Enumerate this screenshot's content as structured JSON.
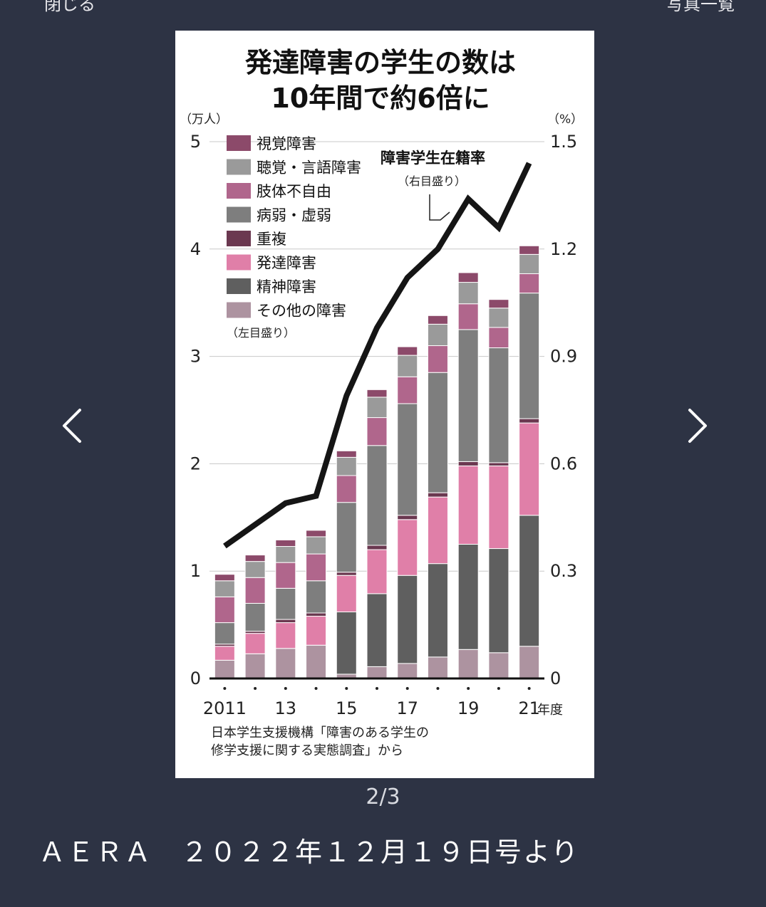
{
  "nav": {
    "close_label": "閉じる",
    "photo_list_label": "写真一覧",
    "prev_icon": "chevron-left-icon",
    "next_icon": "chevron-right-icon"
  },
  "viewer": {
    "counter": "2/3",
    "caption": "ＡＥＲＡ　２０２２年１２月１９日号より"
  },
  "chart_data": {
    "type": "bar",
    "stacked": true,
    "title_line1": "発達障害の学生の数は",
    "title_line2": "10年間で約6倍に",
    "y_unit_left": "（万人）",
    "y_unit_right": "（%）",
    "ylim": [
      0,
      5
    ],
    "y2lim": [
      0,
      1.5
    ],
    "yticks": [
      "0",
      "1",
      "2",
      "3",
      "4",
      "5"
    ],
    "y2ticks": [
      "0",
      "0.3",
      "0.6",
      "0.9",
      "1.2",
      "1.5"
    ],
    "x": [
      "2011",
      "12",
      "13",
      "14",
      "15",
      "16",
      "17",
      "18",
      "19",
      "20",
      "21"
    ],
    "x_tick_labels": [
      "2011",
      "",
      "13",
      "",
      "15",
      "",
      "17",
      "",
      "19",
      "",
      "21"
    ],
    "x_unit": "年度",
    "grid": true,
    "legend_note": "（左目盛り）",
    "colors": {
      "visual": "#8c4a6a",
      "hearing": "#9a9a9a",
      "limb": "#b0668c",
      "illness": "#7e7e7e",
      "multiple": "#6b3850",
      "developmental": "#e07fa8",
      "mental": "#5f5f5f",
      "other": "#ad93a0"
    },
    "series": [
      {
        "name": "視覚障害",
        "key": "visual",
        "values": [
          0.06,
          0.06,
          0.06,
          0.06,
          0.06,
          0.07,
          0.08,
          0.08,
          0.09,
          0.08,
          0.08
        ]
      },
      {
        "name": "聴覚・言語障害",
        "key": "hearing",
        "values": [
          0.15,
          0.15,
          0.15,
          0.16,
          0.17,
          0.19,
          0.2,
          0.2,
          0.2,
          0.18,
          0.18
        ]
      },
      {
        "name": "肢体不自由",
        "key": "limb",
        "values": [
          0.24,
          0.24,
          0.24,
          0.25,
          0.25,
          0.26,
          0.25,
          0.25,
          0.24,
          0.19,
          0.18
        ]
      },
      {
        "name": "病弱・虚弱",
        "key": "illness",
        "values": [
          0.2,
          0.26,
          0.29,
          0.3,
          0.65,
          0.93,
          1.04,
          1.12,
          1.23,
          1.07,
          1.17
        ]
      },
      {
        "name": "重複",
        "key": "multiple",
        "values": [
          0.02,
          0.02,
          0.03,
          0.03,
          0.03,
          0.04,
          0.04,
          0.04,
          0.04,
          0.03,
          0.04
        ]
      },
      {
        "name": "発達障害",
        "key": "developmental",
        "values": [
          0.13,
          0.19,
          0.24,
          0.27,
          0.34,
          0.41,
          0.52,
          0.62,
          0.73,
          0.77,
          0.86
        ]
      },
      {
        "name": "精神障害",
        "key": "mental",
        "values": [
          0.0,
          0.0,
          0.0,
          0.0,
          0.58,
          0.68,
          0.82,
          0.87,
          0.98,
          0.97,
          1.22
        ]
      },
      {
        "name": "その他の障害",
        "key": "other",
        "values": [
          0.17,
          0.23,
          0.28,
          0.31,
          0.04,
          0.11,
          0.14,
          0.2,
          0.27,
          0.24,
          0.3
        ]
      }
    ],
    "line": {
      "name": "障害学生在籍率",
      "axis_note": "（右目盛り）",
      "values": [
        0.37,
        0.43,
        0.49,
        0.51,
        0.79,
        0.98,
        1.12,
        1.2,
        1.34,
        1.26,
        1.44
      ]
    },
    "source_line1": "日本学生支援機構「障害のある学生の",
    "source_line2": "修学支援に関する実態調査」から"
  }
}
